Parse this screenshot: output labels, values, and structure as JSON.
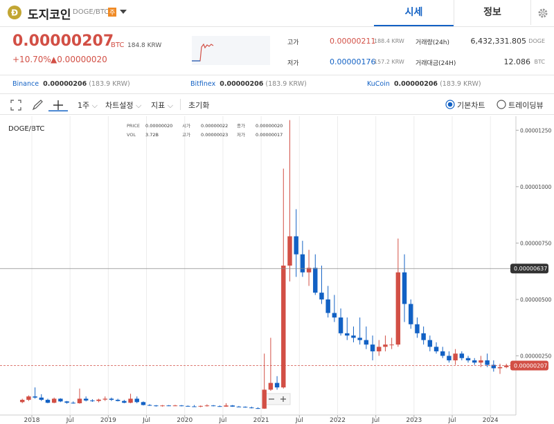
{
  "header": {
    "coin": "도지코인",
    "pair": "DOGE/BTC",
    "badge": "주",
    "tabs": [
      "시세",
      "정보"
    ]
  },
  "price": {
    "value": "0.00000207",
    "unit": "BTC",
    "krw": "184.8 KRW",
    "change_rate": "+10.70%",
    "change": "▲0.00000020"
  },
  "stats": [
    {
      "label": "고가",
      "value": "0.00000211",
      "sub": "188.4 KRW"
    },
    {
      "label": "저가",
      "value": "0.00000176",
      "sub": "157.2 KRW"
    },
    {
      "label": "거래량(24h)",
      "value": "6,432,331.805",
      "sub": "DOGE"
    },
    {
      "label": "거래대금(24H)",
      "value": "12.086",
      "sub": "BTC"
    }
  ],
  "exchanges": [
    {
      "name": "Binance",
      "price": "0.00000206",
      "krw": "(183.9 KRW)"
    },
    {
      "name": "Bitfinex",
      "price": "0.00000206",
      "krw": "(183.9 KRW)"
    },
    {
      "name": "KuCoin",
      "price": "0.00000206",
      "krw": "(183.9 KRW)"
    }
  ],
  "toolbar": {
    "period": "1주",
    "settings": "차트설정",
    "indicators": "지표",
    "reset": "초기화",
    "chart_types": [
      "기본차트",
      "트레이딩뷰"
    ]
  },
  "chart_data": {
    "type": "candlestick",
    "title": "DOGE/BTC",
    "info": [
      {
        "label": "PRICE",
        "value": "0.00000020"
      },
      {
        "label": "시가",
        "value": "0.00000022"
      },
      {
        "label": "종가",
        "value": "0.00000020"
      },
      {
        "label": "VOL",
        "value": "3.72B"
      },
      {
        "label": "고가",
        "value": "0.00000023"
      },
      {
        "label": "저가",
        "value": "0.00000017"
      }
    ],
    "up_color": "#d24f45",
    "down_color": "#1261c4",
    "x": [
      "2017-11",
      "2017-12",
      "2018-01",
      "2018-02",
      "2018-03",
      "2018-04",
      "2018-05",
      "2018-06",
      "2018-07",
      "2018-08",
      "2018-09",
      "2018-10",
      "2018-11",
      "2018-12",
      "2019-01",
      "2019-02",
      "2019-03",
      "2019-04",
      "2019-05",
      "2019-06",
      "2019-07",
      "2019-08",
      "2019-09",
      "2019-10",
      "2019-11",
      "2019-12",
      "2020-01",
      "2020-02",
      "2020-03",
      "2020-04",
      "2020-05",
      "2020-06",
      "2020-07",
      "2020-08",
      "2020-09",
      "2020-10",
      "2020-11",
      "2020-12",
      "2021-01",
      "2021-02",
      "2021-03",
      "2021-04",
      "2021-05",
      "2021-06",
      "2021-07",
      "2021-08",
      "2021-09",
      "2021-10",
      "2021-11",
      "2021-12",
      "2022-01",
      "2022-02",
      "2022-03",
      "2022-04",
      "2022-05",
      "2022-06",
      "2022-07",
      "2022-08",
      "2022-09",
      "2022-10",
      "2022-11",
      "2022-12",
      "2023-01",
      "2023-02",
      "2023-03",
      "2023-04",
      "2023-05",
      "2023-06",
      "2023-07",
      "2023-08",
      "2023-09",
      "2023-10",
      "2023-11",
      "2023-12",
      "2024-01",
      "2024-02",
      "2024-03"
    ],
    "ohlc": [
      [
        4.5e-07,
        6e-07,
        4e-07,
        5.5e-07
      ],
      [
        5.5e-07,
        7.5e-07,
        5e-07,
        7e-07
      ],
      [
        7e-07,
        1.1e-06,
        6e-07,
        6.5e-07
      ],
      [
        6.5e-07,
        8e-07,
        5e-07,
        5.5e-07
      ],
      [
        5.5e-07,
        6e-07,
        4e-07,
        4.2e-07
      ],
      [
        4.2e-07,
        6.5e-07,
        4e-07,
        6e-07
      ],
      [
        6e-07,
        6.2e-07,
        4.5e-07,
        4.8e-07
      ],
      [
        4.8e-07,
        5e-07,
        3.8e-07,
        4.2e-07
      ],
      [
        4.2e-07,
        4.8e-07,
        3.8e-07,
        4e-07
      ],
      [
        4e-07,
        1.05e-06,
        3.8e-07,
        6e-07
      ],
      [
        6e-07,
        7e-07,
        4.8e-07,
        5.2e-07
      ],
      [
        5.2e-07,
        5.8e-07,
        4.6e-07,
        5e-07
      ],
      [
        5e-07,
        6e-07,
        4.4e-07,
        5.6e-07
      ],
      [
        5.6e-07,
        7e-07,
        5e-07,
        6e-07
      ],
      [
        6e-07,
        6.5e-07,
        5e-07,
        5.5e-07
      ],
      [
        5.5e-07,
        6e-07,
        4.8e-07,
        5e-07
      ],
      [
        5e-07,
        5.5e-07,
        4e-07,
        4.2e-07
      ],
      [
        4.2e-07,
        8.2e-07,
        4e-07,
        6e-07
      ],
      [
        6e-07,
        7e-07,
        4e-07,
        4.5e-07
      ],
      [
        4.5e-07,
        4.8e-07,
        3e-07,
        3.2e-07
      ],
      [
        3.2e-07,
        3.6e-07,
        2.8e-07,
        3e-07
      ],
      [
        3e-07,
        3.2e-07,
        2.5e-07,
        2.7e-07
      ],
      [
        2.7e-07,
        3.2e-07,
        2.5e-07,
        3e-07
      ],
      [
        3e-07,
        3.2e-07,
        2.7e-07,
        2.9e-07
      ],
      [
        2.9e-07,
        3.3e-07,
        2.7e-07,
        3e-07
      ],
      [
        3e-07,
        3.2e-07,
        2.6e-07,
        2.8e-07
      ],
      [
        2.8e-07,
        3e-07,
        2.5e-07,
        2.6e-07
      ],
      [
        2.6e-07,
        3.2e-07,
        2.4e-07,
        2.5e-07
      ],
      [
        2.5e-07,
        3e-07,
        2.2e-07,
        2.8e-07
      ],
      [
        2.8e-07,
        3.5e-07,
        2.5e-07,
        3e-07
      ],
      [
        3e-07,
        3.2e-07,
        2.6e-07,
        2.7e-07
      ],
      [
        2.7e-07,
        3e-07,
        2.4e-07,
        2.5e-07
      ],
      [
        2.5e-07,
        4e-07,
        2.4e-07,
        3e-07
      ],
      [
        3e-07,
        3.2e-07,
        2.4e-07,
        2.5e-07
      ],
      [
        2.5e-07,
        2.8e-07,
        2.3e-07,
        2.4e-07
      ],
      [
        2.4e-07,
        2.6e-07,
        2e-07,
        2.1e-07
      ],
      [
        2.1e-07,
        2.5e-07,
        1.7e-07,
        1.8e-07
      ],
      [
        1.8e-07,
        2.2e-07,
        1.5e-07,
        1.6e-07
      ],
      [
        1.6e-07,
        2.6e-06,
        1.5e-07,
        1e-06
      ],
      [
        1e-06,
        3.3e-06,
        9.5e-07,
        1.3e-06
      ],
      [
        1.3e-06,
        1.6e-06,
        1e-06,
        1.1e-06
      ],
      [
        1.1e-06,
        1.08e-05,
        1.05e-06,
        6.5e-06
      ],
      [
        6.5e-06,
        1.295e-05,
        5.8e-06,
        7.8e-06
      ],
      [
        7.8e-06,
        9e-06,
        6e-06,
        7e-06
      ],
      [
        7e-06,
        7.6e-06,
        6e-06,
        6.2e-06
      ],
      [
        6.2e-06,
        7.2e-06,
        5.6e-06,
        6.4e-06
      ],
      [
        6.4e-06,
        7e-06,
        5.2e-06,
        5.3e-06
      ],
      [
        5.3e-06,
        6.5e-06,
        4.8e-06,
        5e-06
      ],
      [
        5e-06,
        5.6e-06,
        4.2e-06,
        4.4e-06
      ],
      [
        4.4e-06,
        5.2e-06,
        4e-06,
        4.2e-06
      ],
      [
        4.2e-06,
        4.6e-06,
        3.4e-06,
        3.5e-06
      ],
      [
        3.5e-06,
        4.2e-06,
        3.2e-06,
        3.4e-06
      ],
      [
        3.4e-06,
        3.8e-06,
        3.1e-06,
        3.3e-06
      ],
      [
        3.3e-06,
        4.2e-06,
        3e-06,
        3.2e-06
      ],
      [
        3.2e-06,
        3.8e-06,
        2.8e-06,
        3e-06
      ],
      [
        3e-06,
        3.4e-06,
        2.3e-06,
        2.7e-06
      ],
      [
        2.7e-06,
        3.2e-06,
        2.5e-06,
        2.9e-06
      ],
      [
        2.9e-06,
        3.4e-06,
        2.7e-06,
        3e-06
      ],
      [
        3e-06,
        3.3e-06,
        2.8e-06,
        3e-06
      ],
      [
        3e-06,
        7.7e-06,
        2.9e-06,
        6.2e-06
      ],
      [
        6.2e-06,
        7e-06,
        4e-06,
        4.8e-06
      ],
      [
        4.8e-06,
        5e-06,
        3.7e-06,
        3.9e-06
      ],
      [
        3.9e-06,
        4.2e-06,
        3.3e-06,
        3.5e-06
      ],
      [
        3.5e-06,
        3.8e-06,
        3e-06,
        3.2e-06
      ],
      [
        3.2e-06,
        3.4e-06,
        2.7e-06,
        2.9e-06
      ],
      [
        2.9e-06,
        3.1e-06,
        2.6e-06,
        2.7e-06
      ],
      [
        2.7e-06,
        2.9e-06,
        2.4e-06,
        2.5e-06
      ],
      [
        2.5e-06,
        2.7e-06,
        2.2e-06,
        2.3e-06
      ],
      [
        2.3e-06,
        2.8e-06,
        2.1e-06,
        2.6e-06
      ],
      [
        2.6e-06,
        2.7e-06,
        2.3e-06,
        2.4e-06
      ],
      [
        2.4e-06,
        2.5e-06,
        2.2e-06,
        2.3e-06
      ],
      [
        2.3e-06,
        2.4e-06,
        2.1e-06,
        2.2e-06
      ],
      [
        2.2e-06,
        2.5e-06,
        2e-06,
        2.3e-06
      ],
      [
        2.3e-06,
        2.6e-06,
        2e-06,
        2.1e-06
      ],
      [
        2.1e-06,
        2.3e-06,
        1.8e-06,
        1.95e-06
      ],
      [
        1.95e-06,
        2.15e-06,
        1.7e-06,
        2e-06
      ],
      [
        2e-06,
        2.15e-06,
        1.95e-06,
        2.07e-06
      ]
    ],
    "xlim": [
      "2017-08",
      "2024-05"
    ],
    "xticks": [
      {
        "value": "2018-01",
        "label": "2018"
      },
      {
        "value": "2018-07",
        "label": "Jul"
      },
      {
        "value": "2019-01",
        "label": "2019"
      },
      {
        "value": "2019-07",
        "label": "Jul"
      },
      {
        "value": "2020-01",
        "label": "2020"
      },
      {
        "value": "2020-07",
        "label": "Jul"
      },
      {
        "value": "2021-01",
        "label": "2021"
      },
      {
        "value": "2021-07",
        "label": "Jul"
      },
      {
        "value": "2022-01",
        "label": "2022"
      },
      {
        "value": "2022-07",
        "label": "Jul"
      },
      {
        "value": "2023-01",
        "label": "2023"
      },
      {
        "value": "2023-07",
        "label": "Jul"
      },
      {
        "value": "2024-01",
        "label": "2024"
      }
    ],
    "ylim": [
      0,
      1.3e-05
    ],
    "yticks": [
      {
        "value": 2.5e-06,
        "label": "0.00000250"
      },
      {
        "value": 5e-06,
        "label": "0.00000500"
      },
      {
        "value": 7.5e-06,
        "label": "0.00000750"
      },
      {
        "value": 1e-05,
        "label": "0.00001000"
      },
      {
        "value": 1.25e-05,
        "label": "0.00001250"
      }
    ],
    "crosshair": 6.37e-06,
    "last_price": 2.07e-06,
    "grid": true
  }
}
